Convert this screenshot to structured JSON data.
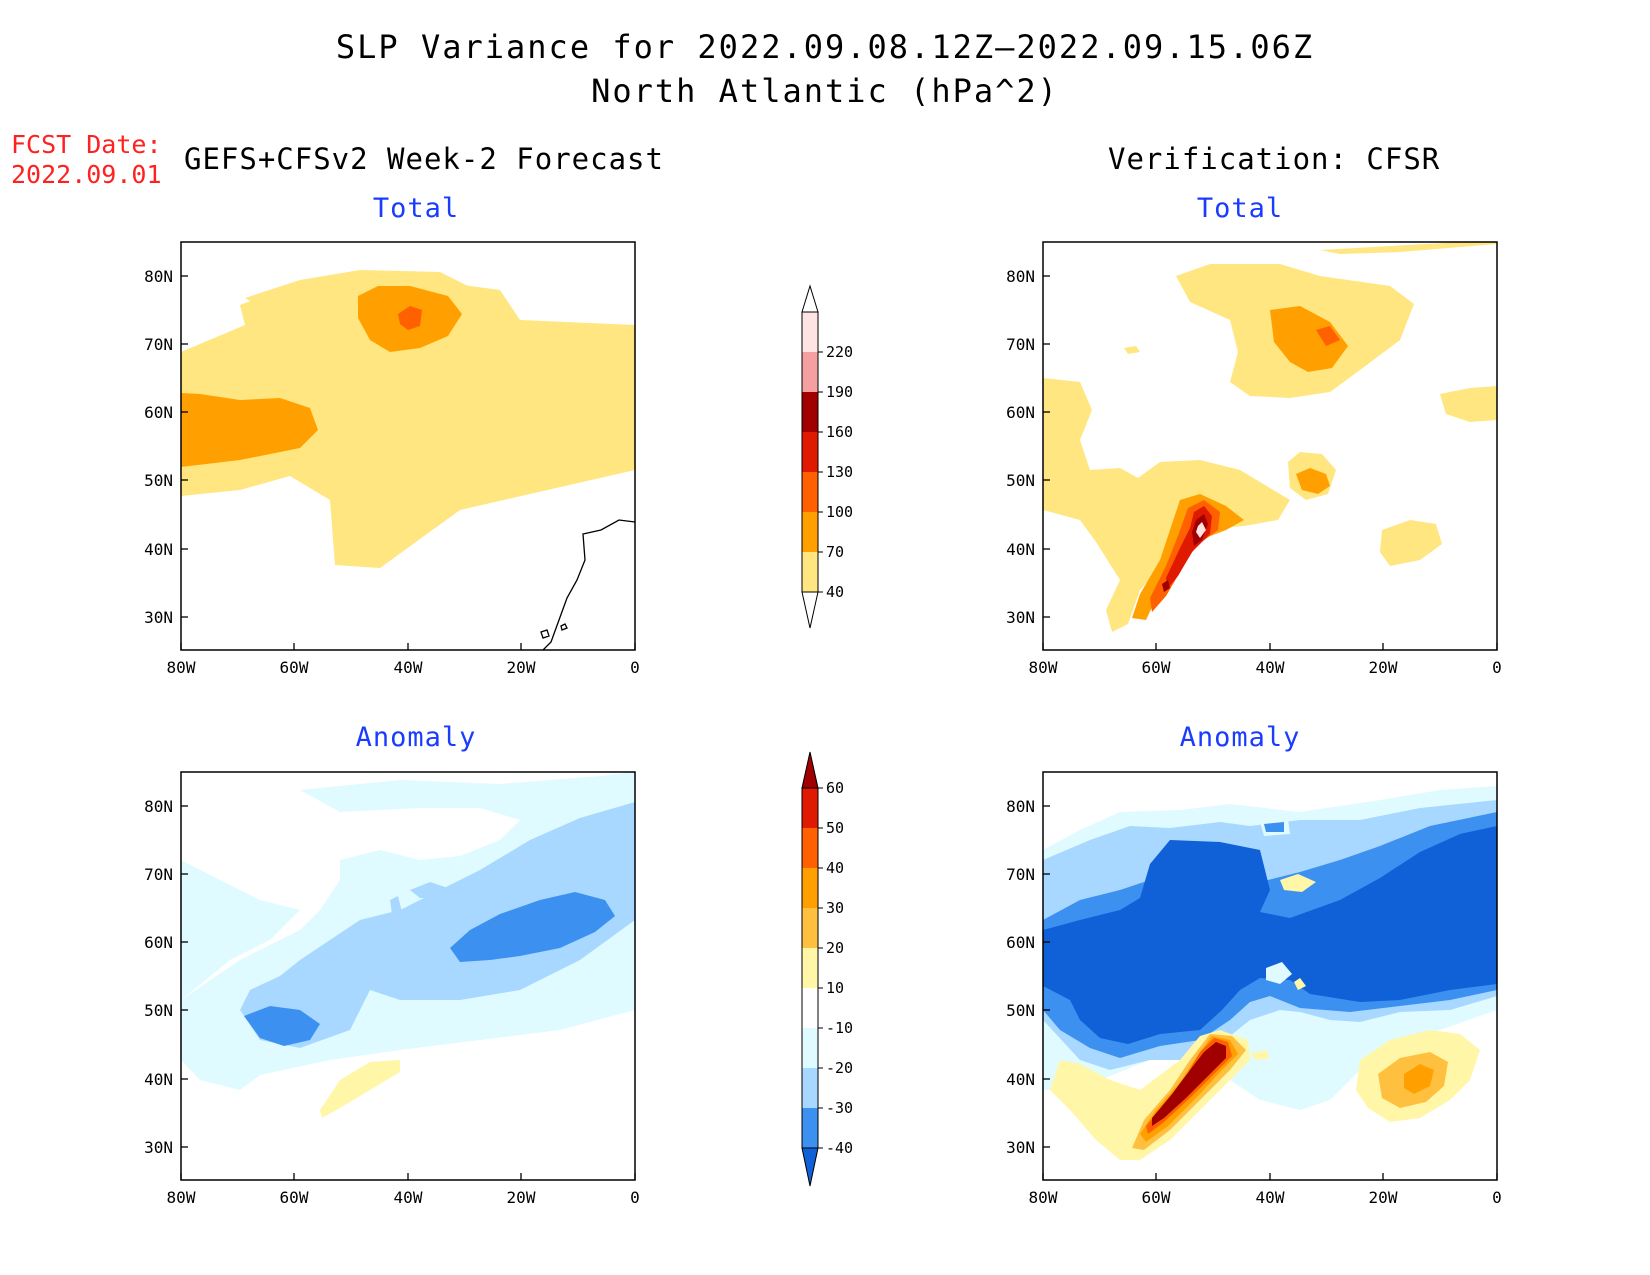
{
  "title_line1": "SLP Variance for 2022.09.08.12Z–2022.09.15.06Z",
  "title_line2": "North Atlantic (hPa^2)",
  "fcst_label": "FCST Date:",
  "fcst_date": "2022.09.01",
  "left_header": "GEFS+CFSv2 Week-2 Forecast",
  "right_header": "Verification: CFSR",
  "panels": {
    "total_left": "Total",
    "total_right": "Total",
    "anom_left": "Anomaly",
    "anom_right": "Anomaly"
  },
  "lat_ticks": [
    "80N",
    "70N",
    "60N",
    "50N",
    "40N",
    "30N"
  ],
  "lon_ticks": [
    "80W",
    "60W",
    "40W",
    "20W",
    "0"
  ],
  "colorbar_total": {
    "labels": [
      "220",
      "190",
      "160",
      "130",
      "100",
      "70",
      "40"
    ],
    "colors": [
      "#ffe4e4",
      "#f4a0a0",
      "#a00000",
      "#e01a00",
      "#ff6000",
      "#ffa000",
      "#ffe680"
    ]
  },
  "colorbar_anomaly": {
    "labels": [
      "60",
      "50",
      "40",
      "30",
      "20",
      "10",
      "-10",
      "-20",
      "-30",
      "-40"
    ],
    "colors": [
      "#a00000",
      "#e01a00",
      "#ff6000",
      "#ffa000",
      "#ffc040",
      "#fff6a8",
      "#ffffff",
      "#e0fbff",
      "#a8d8ff",
      "#3c90f0",
      "#1060d8"
    ]
  }
}
